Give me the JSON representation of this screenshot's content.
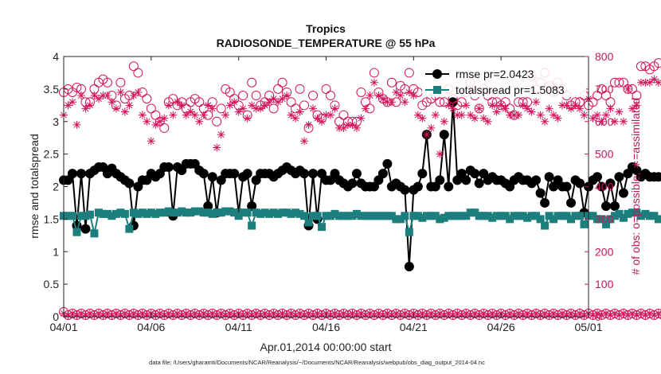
{
  "chart_data": {
    "type": "line",
    "title": "Tropics",
    "subtitle": "RADIOSONDE_TEMPERATURE @ 55 hPa",
    "xlabel": "Apr.01,2014 00:00:00 start",
    "ylabel_left": "rmse and totalspread",
    "ylabel_right": "# of obs: o=possible; ∗=assimilated",
    "footnote": "data file: /Users/gharamti/Documents/NCAR/Reanalysis/~/Documents/NCAR/Reanalysis/webpub/obs_diag_output_2014-04.nc",
    "xlim": [
      0,
      30
    ],
    "ylim_left": [
      0,
      4
    ],
    "ylim_right": [
      0,
      800
    ],
    "x_ticks": [
      0,
      5,
      10,
      15,
      20,
      25,
      30
    ],
    "x_tick_labels": [
      "04/01",
      "04/06",
      "04/11",
      "04/16",
      "04/21",
      "04/26",
      "05/01"
    ],
    "y_ticks_left": [
      "0",
      "0.5",
      "1",
      "1.5",
      "2",
      "2.5",
      "3",
      "3.5",
      "4"
    ],
    "y_ticks_right": [
      "0",
      "100",
      "200",
      "300",
      "400",
      "500",
      "600",
      "700",
      "800"
    ],
    "legend": [
      {
        "name": "rmse pr=2.0423",
        "color": "#000000",
        "marker": "circle"
      },
      {
        "name": "totalspread pr=1.5083",
        "color": "#1c7f7e",
        "marker": "square"
      }
    ],
    "legend_position": "top-right",
    "x_step_days": 0.25,
    "series": [
      {
        "name": "rmse",
        "axis": "left",
        "color": "#000000",
        "marker": "circle",
        "values": [
          2.1,
          2.1,
          2.2,
          1.4,
          2.2,
          1.35,
          2.2,
          2.25,
          2.3,
          2.3,
          2.2,
          2.28,
          2.2,
          2.15,
          2.1,
          2.05,
          1.4,
          2.0,
          2.1,
          2.1,
          2.2,
          2.15,
          2.2,
          2.3,
          2.3,
          1.55,
          2.3,
          2.25,
          2.35,
          2.35,
          2.35,
          2.25,
          2.2,
          1.7,
          2.15,
          1.6,
          2.1,
          2.2,
          2.2,
          2.2,
          1.6,
          2.15,
          2.2,
          1.7,
          2.1,
          2.2,
          2.2,
          2.2,
          2.15,
          2.2,
          2.25,
          2.3,
          2.25,
          2.2,
          2.25,
          2.2,
          1.4,
          2.2,
          1.5,
          2.2,
          2.1,
          2.1,
          2.2,
          2.1,
          2.05,
          2.0,
          2.05,
          2.2,
          2.05,
          2.0,
          2.0,
          2.0,
          2.1,
          2.2,
          2.35,
          2.0,
          2.05,
          2.0,
          1.95,
          0.77,
          1.95,
          2.0,
          2.2,
          2.8,
          2.0,
          2.0,
          2.1,
          2.8,
          2.0,
          3.3,
          2.1,
          2.2,
          2.1,
          2.25,
          2.2,
          2.05,
          2.2,
          2.1,
          2.15,
          2.1,
          2.1,
          2.05,
          2.0,
          2.1,
          2.15,
          2.1,
          2.1,
          2.05,
          2.1,
          1.9,
          1.75,
          2.15,
          2.0,
          2.1,
          2.0,
          2.0,
          1.75,
          2.1,
          2.05,
          1.6,
          2.0,
          2.1,
          2.15,
          2.0,
          1.7,
          2.05,
          1.7,
          2.15,
          1.9,
          2.2,
          2.3,
          2.25,
          2.15,
          2.2,
          2.15,
          2.15,
          2.15
        ]
      },
      {
        "name": "totalspread",
        "axis": "left",
        "color": "#1c7f7e",
        "marker": "square",
        "values": [
          1.55,
          1.55,
          1.55,
          1.3,
          1.55,
          1.55,
          1.57,
          1.28,
          1.6,
          1.58,
          1.58,
          1.55,
          1.58,
          1.6,
          1.58,
          1.35,
          1.6,
          1.58,
          1.6,
          1.58,
          1.6,
          1.58,
          1.6,
          1.6,
          1.62,
          1.6,
          1.6,
          1.62,
          1.6,
          1.6,
          1.62,
          1.62,
          1.6,
          1.6,
          1.58,
          1.6,
          1.6,
          1.62,
          1.62,
          1.6,
          1.55,
          1.6,
          1.6,
          1.4,
          1.6,
          1.58,
          1.6,
          1.58,
          1.6,
          1.58,
          1.6,
          1.6,
          1.58,
          1.6,
          1.58,
          1.55,
          1.45,
          1.55,
          1.55,
          1.38,
          1.55,
          1.55,
          1.58,
          1.55,
          1.55,
          1.55,
          1.55,
          1.58,
          1.55,
          1.55,
          1.55,
          1.55,
          1.55,
          1.55,
          1.55,
          1.55,
          1.5,
          1.5,
          1.55,
          1.3,
          1.55,
          1.55,
          1.52,
          1.55,
          1.55,
          1.55,
          1.5,
          1.52,
          1.55,
          1.55,
          1.55,
          1.55,
          1.55,
          1.6,
          1.6,
          1.55,
          1.55,
          1.55,
          1.52,
          1.55,
          1.55,
          1.55,
          1.5,
          1.55,
          1.55,
          1.55,
          1.52,
          1.55,
          1.55,
          1.5,
          1.4,
          1.55,
          1.5,
          1.55,
          1.55,
          1.55,
          1.5,
          1.55,
          1.55,
          1.42,
          1.55,
          1.55,
          1.5,
          1.5,
          1.42,
          1.5,
          1.55,
          1.58,
          1.52,
          1.58,
          1.6,
          1.6,
          1.55,
          1.58,
          1.55,
          1.55,
          1.5
        ]
      },
      {
        "name": "possible",
        "axis": "right",
        "color": "#d4145a",
        "marker": "open-circle",
        "values": [
          690,
          700,
          690,
          705,
          700,
          660,
          660,
          700,
          720,
          730,
          720,
          680,
          650,
          720,
          670,
          680,
          770,
          750,
          690,
          670,
          640,
          620,
          600,
          580,
          660,
          670,
          650,
          660,
          640,
          660,
          670,
          660,
          640,
          620,
          660,
          600,
          640,
          700,
          690,
          670,
          650,
          680,
          620,
          720,
          680,
          650,
          660,
          680,
          640,
          700,
          720,
          690,
          660,
          640,
          700,
          650,
          580,
          680,
          620,
          610,
          700,
          680,
          650,
          600,
          620,
          600,
          600,
          600,
          690,
          660,
          640,
          750,
          690,
          670,
          660,
          720,
          660,
          710,
          700,
          750,
          700,
          690,
          650,
          660,
          670,
          680,
          660,
          660,
          700,
          670,
          650,
          660,
          690,
          720,
          680,
          640,
          700,
          680,
          660,
          660,
          650,
          660,
          640,
          620,
          660,
          660,
          660,
          740,
          700,
          720,
          750,
          710,
          690,
          720,
          700,
          680,
          650,
          660,
          660,
          680,
          650,
          660,
          680,
          700,
          680,
          660,
          720,
          720,
          720,
          700,
          700,
          680,
          770,
          770,
          760,
          770,
          780
        ]
      },
      {
        "name": "assimilated",
        "axis": "right",
        "color": "#d4145a",
        "marker": "star",
        "values": [
          620,
          650,
          660,
          590,
          680,
          640,
          650,
          680,
          670,
          680,
          680,
          660,
          640,
          690,
          630,
          650,
          680,
          690,
          620,
          600,
          540,
          590,
          600,
          610,
          650,
          620,
          660,
          650,
          620,
          630,
          620,
          600,
          620,
          650,
          640,
          520,
          560,
          620,
          650,
          660,
          630,
          640,
          610,
          650,
          640,
          640,
          650,
          660,
          670,
          660,
          670,
          680,
          620,
          610,
          630,
          540,
          590,
          640,
          610,
          600,
          620,
          620,
          640,
          580,
          580,
          590,
          590,
          580,
          610,
          640,
          680,
          720,
          680,
          670,
          660,
          660,
          690,
          680,
          660,
          690,
          680,
          620,
          610,
          560,
          580,
          620,
          500,
          600,
          650,
          640,
          620,
          620,
          650,
          620,
          610,
          640,
          610,
          600,
          650,
          630,
          650,
          640,
          620,
          620,
          620,
          650,
          640,
          630,
          660,
          620,
          600,
          640,
          620,
          610,
          650,
          650,
          640,
          650,
          640,
          620,
          670,
          610,
          620,
          600,
          620,
          640,
          600,
          630,
          600,
          700,
          640,
          650,
          720,
          720,
          720,
          730,
          720
        ]
      },
      {
        "name": "possible (bottom)",
        "axis": "right",
        "color": "#d4145a",
        "marker": "open-circle",
        "values": [
          15,
          5,
          10,
          5,
          10,
          5,
          10,
          5,
          10,
          5,
          10,
          5,
          10,
          5,
          10,
          5,
          10,
          5,
          10,
          5,
          10,
          5,
          10,
          5,
          10,
          5,
          10,
          5,
          10,
          5,
          10,
          5,
          10,
          5,
          10,
          5,
          10,
          5,
          10,
          5,
          10,
          5,
          10,
          5,
          10,
          5,
          10,
          5,
          10,
          5,
          10,
          5,
          10,
          5,
          10,
          5,
          10,
          5,
          10,
          5,
          10,
          5,
          10,
          5,
          10,
          5,
          10,
          5,
          10,
          5,
          10,
          5,
          10,
          5,
          10,
          5,
          10,
          5,
          10,
          5,
          10,
          5,
          10,
          5,
          10,
          5,
          10,
          5,
          10,
          5,
          10,
          5,
          10,
          5,
          10,
          5,
          10,
          5,
          10,
          5,
          10,
          5,
          10,
          5,
          10,
          5,
          10,
          5,
          10,
          5,
          10,
          5,
          10,
          5,
          10,
          5,
          10,
          5,
          10,
          5,
          10,
          5,
          10,
          5,
          10,
          5,
          10,
          5,
          10,
          5,
          10,
          5,
          10,
          5,
          10,
          5,
          10,
          5,
          10,
          5,
          30
        ]
      },
      {
        "name": "assimilated (bottom)",
        "axis": "right",
        "color": "#d4145a",
        "marker": "star",
        "values": [
          10,
          5,
          10,
          5,
          10,
          5,
          10,
          5,
          10,
          5,
          10,
          5,
          10,
          5,
          10,
          5,
          10,
          5,
          10,
          5,
          10,
          5,
          10,
          5,
          10,
          5,
          10,
          5,
          10,
          5,
          10,
          5,
          10,
          5,
          10,
          5,
          10,
          5,
          10,
          5,
          10,
          5,
          10,
          5,
          10,
          5,
          10,
          5,
          10,
          5,
          10,
          5,
          10,
          5,
          10,
          5,
          10,
          5,
          10,
          5,
          10,
          5,
          10,
          5,
          10,
          5,
          10,
          5,
          10,
          5,
          10,
          5,
          10,
          5,
          10,
          5,
          10,
          5,
          10,
          5,
          10,
          5,
          10,
          5,
          10,
          5,
          10,
          5,
          10,
          5,
          10,
          5,
          10,
          5,
          10,
          5,
          10,
          5,
          10,
          5,
          10,
          5,
          10,
          5,
          10,
          5,
          10,
          5,
          10,
          5,
          10,
          5,
          10,
          5,
          10,
          5,
          10,
          5,
          10,
          5,
          10,
          5,
          10,
          5,
          10,
          5,
          10,
          5,
          10,
          5,
          10,
          5,
          10,
          5,
          10,
          5,
          10,
          5,
          10,
          5,
          25
        ]
      }
    ],
    "grid": false
  }
}
